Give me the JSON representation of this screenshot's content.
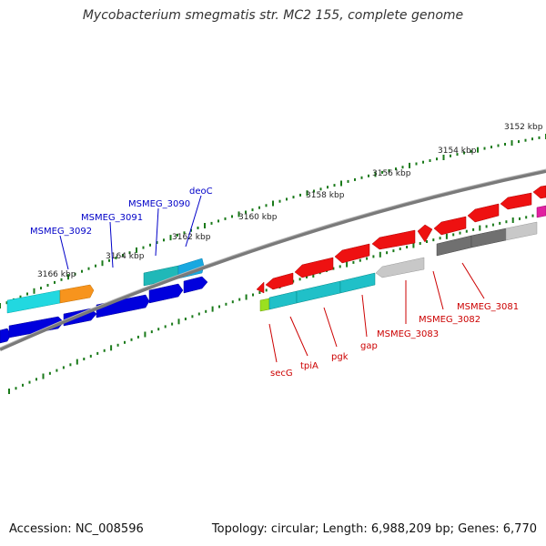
{
  "title": "Mycobacterium smegmatis str. MC2 155, complete genome",
  "footer": {
    "accession": "Accession: NC_008596",
    "summary": "Topology: circular; Length: 6,988,209 bp; Genes: 6,770"
  },
  "colors": {
    "forward_label": "#0000c8",
    "reverse_label": "#cc0000",
    "tick": "#1a7a1a",
    "backbone": "#808080"
  },
  "kbp_ticks": [
    {
      "kbp": 3152,
      "label": "3152 kbp"
    },
    {
      "kbp": 3154,
      "label": "3154 kbp"
    },
    {
      "kbp": 3156,
      "label": "3156 kbp"
    },
    {
      "kbp": 3158,
      "label": "3158 kbp"
    },
    {
      "kbp": 3160,
      "label": "3160 kbp"
    },
    {
      "kbp": 3162,
      "label": "3162 kbp"
    },
    {
      "kbp": 3164,
      "label": "3164 kbp"
    },
    {
      "kbp": 3166,
      "label": "3166 kbp"
    }
  ],
  "genes_forward": [
    {
      "name": "MSMEG_3092"
    },
    {
      "name": "MSMEG_3091"
    },
    {
      "name": "MSMEG_3090"
    },
    {
      "name": "deoC"
    }
  ],
  "genes_reverse": [
    {
      "name": "secG"
    },
    {
      "name": "tpiA"
    },
    {
      "name": "pgk"
    },
    {
      "name": "gap"
    },
    {
      "name": "MSMEG_3083"
    },
    {
      "name": "MSMEG_3082"
    },
    {
      "name": "MSMEG_3081"
    }
  ]
}
